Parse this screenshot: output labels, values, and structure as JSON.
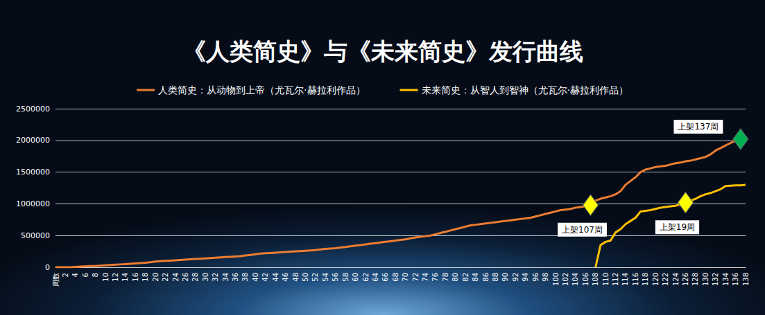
{
  "chart_data": {
    "type": "line",
    "title": "《人类简史》与《未来简史》发行曲线",
    "legend": "top",
    "grid": true,
    "categories": [
      "周数",
      null,
      "2",
      null,
      "4",
      null,
      "6",
      null,
      "8",
      null,
      "10",
      null,
      "12",
      null,
      "14",
      null,
      "16",
      null,
      "18",
      null,
      "20",
      null,
      "22",
      null,
      "24",
      null,
      "26",
      null,
      "28",
      null,
      "30",
      null,
      "32",
      null,
      "34",
      null,
      "36",
      null,
      "38",
      null,
      "40",
      null,
      "42",
      null,
      "44",
      null,
      "46",
      null,
      "48",
      null,
      "50",
      null,
      "52",
      null,
      "54",
      null,
      "56",
      null,
      "58",
      null,
      "60",
      null,
      "62",
      null,
      "64",
      null,
      "66",
      null,
      "68",
      null,
      "70",
      null,
      "72",
      null,
      "74",
      null,
      "76",
      null,
      "78",
      null,
      "80",
      null,
      "82",
      null,
      "84",
      null,
      "86",
      null,
      "88",
      null,
      "90",
      null,
      "92",
      null,
      "94",
      null,
      "96",
      null,
      "98",
      null,
      "100",
      null,
      "102",
      null,
      "104",
      null,
      "106",
      null,
      "108",
      null,
      "110",
      null,
      "112",
      null,
      "114",
      null,
      "116",
      null,
      "118",
      null,
      "120",
      null,
      "122",
      null,
      "124",
      null,
      "126",
      null,
      "128",
      null,
      "130",
      null,
      "132",
      null,
      "134",
      null,
      "136",
      null,
      "138"
    ],
    "ylim": [
      0,
      2500000
    ],
    "yticks": [
      0,
      500000,
      1000000,
      1500000,
      2000000,
      2500000
    ],
    "series": [
      {
        "name": "人类简史：从动物到上帝（尤瓦尔·赫拉利作品）",
        "color": "#ED7D31",
        "values": [
          0,
          0,
          0,
          0,
          5000,
          10000,
          15000,
          18000,
          20000,
          25000,
          30000,
          35000,
          40000,
          45000,
          50000,
          55000,
          60000,
          65000,
          70000,
          80000,
          90000,
          95000,
          100000,
          105000,
          110000,
          115000,
          120000,
          125000,
          130000,
          135000,
          140000,
          145000,
          150000,
          155000,
          160000,
          165000,
          170000,
          175000,
          185000,
          195000,
          205000,
          215000,
          220000,
          225000,
          230000,
          235000,
          240000,
          245000,
          250000,
          255000,
          260000,
          265000,
          270000,
          280000,
          290000,
          295000,
          300000,
          310000,
          320000,
          330000,
          340000,
          350000,
          360000,
          370000,
          380000,
          390000,
          400000,
          410000,
          420000,
          430000,
          440000,
          455000,
          470000,
          480000,
          490000,
          500000,
          520000,
          540000,
          560000,
          580000,
          600000,
          620000,
          640000,
          660000,
          670000,
          680000,
          690000,
          700000,
          710000,
          720000,
          730000,
          740000,
          750000,
          760000,
          770000,
          780000,
          800000,
          820000,
          840000,
          860000,
          880000,
          900000,
          910000,
          920000,
          940000,
          950000,
          960000,
          980000,
          1050000,
          1080000,
          1100000,
          1120000,
          1150000,
          1200000,
          1300000,
          1360000,
          1420000,
          1500000,
          1540000,
          1560000,
          1580000,
          1590000,
          1600000,
          1620000,
          1640000,
          1650000,
          1670000,
          1680000,
          1700000,
          1720000,
          1740000,
          1780000,
          1840000,
          1880000,
          1920000,
          1960000,
          2000000,
          2020000,
          null
        ]
      },
      {
        "name": "未来简史：从智人到智神（尤瓦尔·赫拉利作品）",
        "color": "#FFC000",
        "values": [
          null,
          null,
          null,
          null,
          null,
          null,
          null,
          null,
          null,
          null,
          null,
          null,
          null,
          null,
          null,
          null,
          null,
          null,
          null,
          null,
          null,
          null,
          null,
          null,
          null,
          null,
          null,
          null,
          null,
          null,
          null,
          null,
          null,
          null,
          null,
          null,
          null,
          null,
          null,
          null,
          null,
          null,
          null,
          null,
          null,
          null,
          null,
          null,
          null,
          null,
          null,
          null,
          null,
          null,
          null,
          null,
          null,
          null,
          null,
          null,
          null,
          null,
          null,
          null,
          null,
          null,
          null,
          null,
          null,
          null,
          null,
          null,
          null,
          null,
          null,
          null,
          null,
          null,
          null,
          null,
          null,
          null,
          null,
          null,
          null,
          null,
          null,
          null,
          null,
          null,
          null,
          null,
          null,
          null,
          null,
          null,
          null,
          null,
          null,
          null,
          null,
          null,
          null,
          null,
          null,
          null,
          null,
          null,
          0,
          350000,
          400000,
          420000,
          550000,
          600000,
          680000,
          730000,
          780000,
          880000,
          890000,
          900000,
          920000,
          940000,
          950000,
          960000,
          970000,
          990000,
          1020000,
          1050000,
          1080000,
          1120000,
          1150000,
          1170000,
          1200000,
          1230000,
          1280000,
          1285000,
          1290000,
          1290000,
          1300000
        ]
      }
    ],
    "annotations": [
      {
        "text": "上架107周",
        "x": 107,
        "y": 980000,
        "series": "人类简史：从动物到上帝（尤瓦尔·赫拉利作品）",
        "marker": "diamond",
        "color": "#FFFF00"
      },
      {
        "text": "上架19周",
        "x": 126,
        "y": 1020000,
        "series": "未来简史：从智人到智神（尤瓦尔·赫拉利作品）",
        "marker": "diamond",
        "color": "#FFFF00"
      },
      {
        "text": "上架137周",
        "x": 137,
        "y": 2020000,
        "series": "人类简史：从动物到上帝（尤瓦尔·赫拉利作品）",
        "marker": "diamond",
        "color": "#00B050"
      }
    ]
  }
}
